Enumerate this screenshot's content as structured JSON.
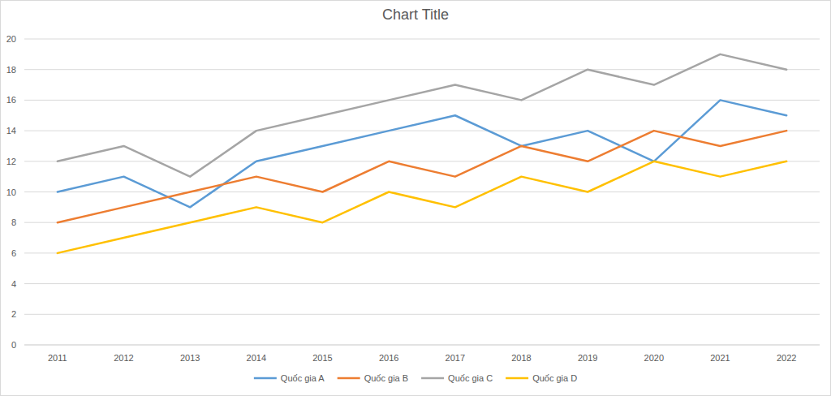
{
  "chart_data": {
    "type": "line",
    "title": "Chart Title",
    "categories": [
      "2011",
      "2012",
      "2013",
      "2014",
      "2015",
      "2016",
      "2017",
      "2018",
      "2019",
      "2020",
      "2021",
      "2022"
    ],
    "series": [
      {
        "name": "Quốc gia A",
        "color": "#5b9bd5",
        "values": [
          10,
          11,
          9,
          12,
          13,
          14,
          15,
          13,
          14,
          12,
          16,
          15
        ]
      },
      {
        "name": "Quốc gia B",
        "color": "#ed7d31",
        "values": [
          8,
          9,
          10,
          11,
          10,
          12,
          11,
          13,
          12,
          14,
          13,
          14
        ]
      },
      {
        "name": "Quốc gia C",
        "color": "#a5a5a5",
        "values": [
          12,
          13,
          11,
          14,
          15,
          16,
          17,
          16,
          18,
          17,
          19,
          18
        ]
      },
      {
        "name": "Quốc gia D",
        "color": "#ffc000",
        "values": [
          6,
          7,
          8,
          9,
          8,
          10,
          9,
          11,
          10,
          12,
          11,
          12
        ]
      }
    ],
    "ylim": [
      0,
      20
    ],
    "yticks": [
      0,
      2,
      4,
      6,
      8,
      10,
      12,
      14,
      16,
      18,
      20
    ],
    "grid": true,
    "legend": "bottom"
  }
}
